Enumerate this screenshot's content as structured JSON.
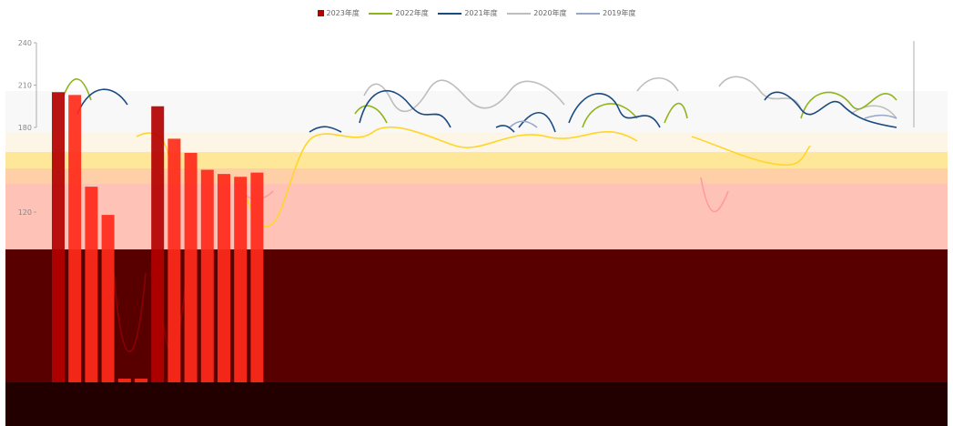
{
  "chart_data": {
    "type": "bar",
    "yticks": [
      120,
      180,
      210,
      240
    ],
    "ylim": [
      0,
      245
    ],
    "grid": false,
    "legend_position": "top-center",
    "series": [
      {
        "name": "2023年度",
        "kind": "bar",
        "color": "#b30000",
        "values": [
          205,
          203,
          138,
          118,
          0,
          2,
          195,
          172,
          162,
          150,
          147,
          145,
          148
        ]
      },
      {
        "name": "2022年度",
        "kind": "line",
        "color": "#8db51a"
      },
      {
        "name": "2021年度",
        "kind": "line",
        "color": "#1a4a82"
      },
      {
        "name": "2020年度",
        "kind": "line",
        "color": "#bdbdbd"
      },
      {
        "name": "2019年度",
        "kind": "line",
        "color": "#98a6c9"
      }
    ]
  },
  "legend": [
    {
      "label": "2023年度",
      "color": "#b30000",
      "shape": "box"
    },
    {
      "label": "2022年度",
      "color": "#8db51a",
      "shape": "line"
    },
    {
      "label": "2021年度",
      "color": "#1a4a82",
      "shape": "line"
    },
    {
      "label": "2020年度",
      "color": "#bdbdbd",
      "shape": "line"
    },
    {
      "label": "2019年度",
      "color": "#98a6c9",
      "shape": "line"
    }
  ]
}
